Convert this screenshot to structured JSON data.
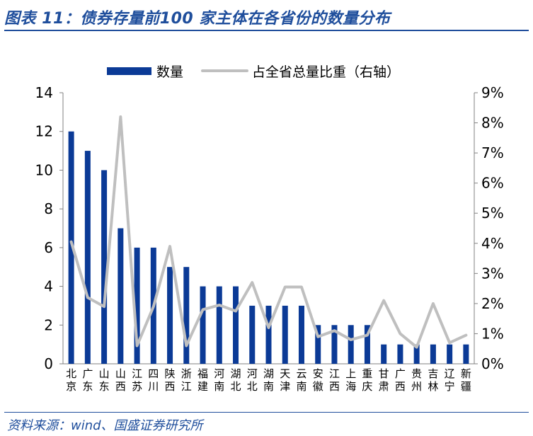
{
  "header": {
    "title": "图表 11：债券存量前100 家主体在各省份的数量分布"
  },
  "footer": {
    "source": "资料来源：wind、国盛证券研究所"
  },
  "colors": {
    "bar": "#0b3a96",
    "line": "#bfbfbf",
    "axis": "#808080",
    "title": "#1f4e9c"
  },
  "chart_data": {
    "type": "bar",
    "categories": [
      "北京",
      "广东",
      "山东",
      "山西",
      "江苏",
      "四川",
      "陕西",
      "浙江",
      "福建",
      "河南",
      "湖北",
      "河北",
      "湖南",
      "天津",
      "云南",
      "安徽",
      "江西",
      "上海",
      "重庆",
      "甘肃",
      "广西",
      "贵州",
      "吉林",
      "辽宁",
      "新疆"
    ],
    "series": [
      {
        "name": "数量",
        "type": "bar",
        "axis": "left",
        "values": [
          12,
          11,
          10,
          7,
          6,
          6,
          5,
          5,
          4,
          4,
          4,
          3,
          3,
          3,
          3,
          2,
          2,
          2,
          2,
          1,
          1,
          1,
          1,
          1,
          1
        ]
      },
      {
        "name": "占全省总量比重（右轴）",
        "type": "line",
        "axis": "right",
        "values": [
          4.05,
          2.2,
          1.9,
          8.2,
          0.6,
          1.9,
          3.9,
          0.6,
          1.8,
          1.95,
          1.75,
          2.7,
          1.2,
          2.55,
          2.55,
          0.9,
          1.1,
          0.8,
          0.95,
          2.1,
          1.0,
          0.55,
          2.0,
          0.7,
          0.95
        ]
      }
    ],
    "y_left": {
      "min": 0,
      "max": 14,
      "ticks": [
        0,
        2,
        4,
        6,
        8,
        10,
        12,
        14
      ]
    },
    "y_right": {
      "min": 0,
      "max": 9,
      "ticks": [
        "0%",
        "1%",
        "2%",
        "3%",
        "4%",
        "5%",
        "6%",
        "7%",
        "8%",
        "9%"
      ]
    },
    "legend_position": "top",
    "grid": false
  }
}
